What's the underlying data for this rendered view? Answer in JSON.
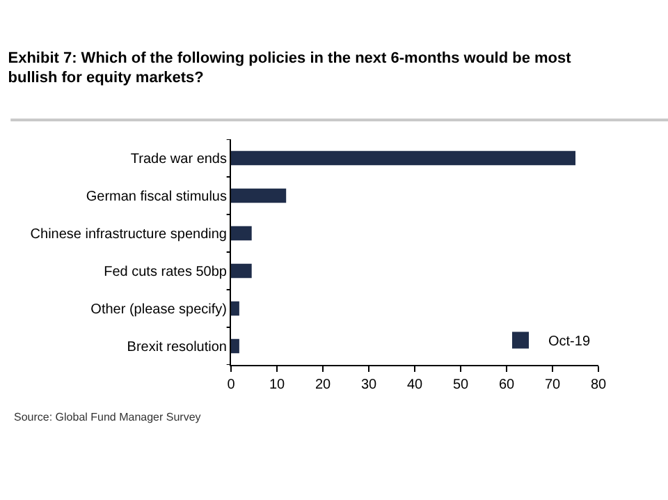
{
  "chart_data": {
    "type": "bar",
    "orientation": "horizontal",
    "title": "Exhibit 7: Which of the following policies in the next 6-months would be most bullish for equity markets?",
    "categories": [
      "Trade war ends",
      "German fiscal stimulus",
      "Chinese infrastructure spending",
      "Fed cuts rates 50bp",
      "Other (please specify)",
      "Brexit resolution"
    ],
    "series": [
      {
        "name": "Oct-19",
        "color": "#1f2d4a",
        "values": [
          75,
          12,
          4.5,
          4.5,
          1.8,
          1.8
        ]
      }
    ],
    "xlim": [
      0,
      80
    ],
    "xticks": [
      0,
      10,
      20,
      30,
      40,
      50,
      60,
      70,
      80
    ],
    "grid": false,
    "legend": "bottom right",
    "annotations": [
      "Source: Global Fund Manager Survey"
    ]
  }
}
